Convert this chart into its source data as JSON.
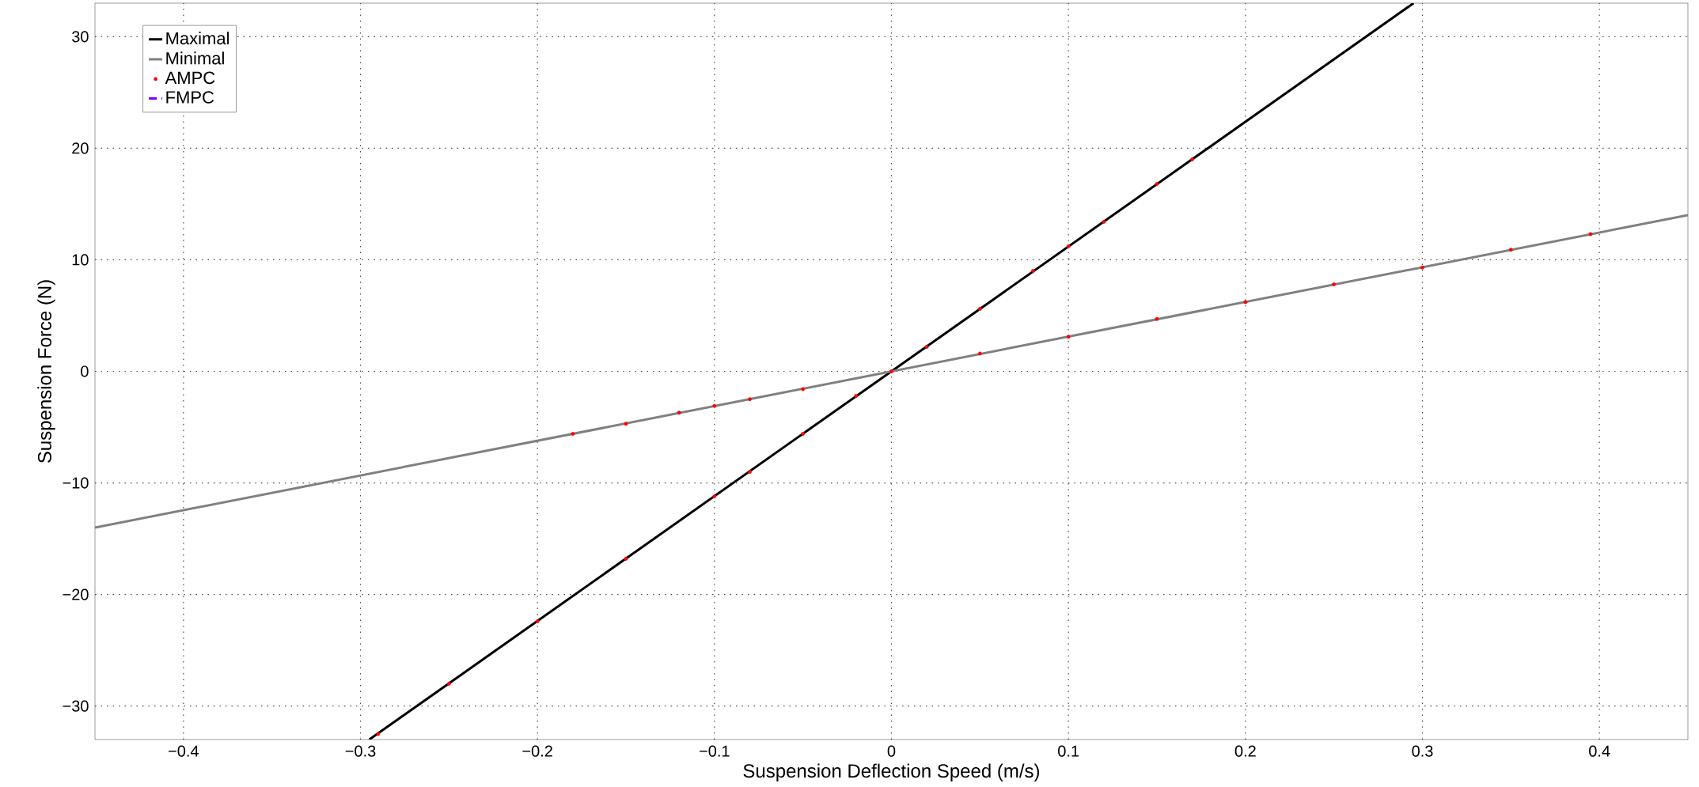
{
  "chart_data": {
    "type": "line",
    "xlabel": "Suspension Deflection Speed (m/s)",
    "ylabel": "Suspension Force (N)",
    "xlim": [
      -0.45,
      0.45
    ],
    "ylim": [
      -33,
      33
    ],
    "xticks": [
      {
        "value": -0.4,
        "label": "−0.4"
      },
      {
        "value": -0.3,
        "label": "−0.3"
      },
      {
        "value": -0.2,
        "label": "−0.2"
      },
      {
        "value": -0.1,
        "label": "−0.1"
      },
      0,
      0.1,
      0.2,
      0.3,
      0.4
    ],
    "yticks": [
      {
        "value": -30,
        "label": "−30"
      },
      {
        "value": -20,
        "label": "−20"
      },
      {
        "value": -10,
        "label": "−10"
      },
      0,
      10,
      20,
      30
    ],
    "grid": true,
    "legend": "top left",
    "series": [
      {
        "name": "Maximal",
        "color": "#000000",
        "line_style": "solid",
        "x": [
          -0.295,
          0.295
        ],
        "values": [
          -33,
          33
        ]
      },
      {
        "name": "Minimal",
        "color": "#808080",
        "line_style": "solid",
        "x": [
          -0.45,
          0.45
        ],
        "values": [
          -14,
          14
        ]
      },
      {
        "name": "AMPC",
        "type": "scatter",
        "marker": "circle",
        "color": "#ff0000",
        "x": [
          -0.29,
          -0.25,
          -0.2,
          -0.15,
          -0.1,
          -0.08,
          -0.05,
          -0.02,
          0,
          0.02,
          0.05,
          0.08,
          0.1,
          0.12,
          0.15,
          0.17,
          -0.18,
          -0.15,
          -0.12,
          -0.1,
          -0.08,
          -0.05,
          0.05,
          0.1,
          0.15,
          0.2,
          0.25,
          0.3,
          0.35,
          0.395
        ],
        "values": [
          -32.5,
          -28,
          -22.4,
          -16.8,
          -11.2,
          -9,
          -5.6,
          -2.2,
          0,
          2.2,
          5.6,
          9,
          11.2,
          13.4,
          16.8,
          19,
          -5.6,
          -4.7,
          -3.7,
          -3.1,
          -2.5,
          -1.6,
          1.6,
          3.1,
          4.7,
          6.2,
          7.8,
          9.3,
          10.9,
          12.3
        ]
      },
      {
        "name": "FMPC",
        "color": "#7f00ff",
        "line_style": "dashed"
      }
    ]
  }
}
